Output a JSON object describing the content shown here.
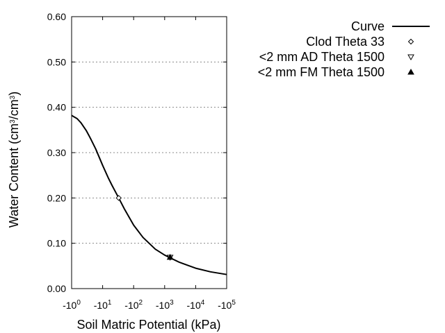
{
  "chart_data": {
    "type": "line",
    "x_scale": "log",
    "x_axis_direction": "negative",
    "xlabel": "Soil Matric Potential (kPa)",
    "ylabel_main": "Water Content (cm",
    "ylabel_sup1": "3",
    "ylabel_mid": "/cm",
    "ylabel_sup2": "3",
    "ylabel_end": ")",
    "xlim": [
      -1,
      -100000
    ],
    "ylim": [
      0,
      0.6
    ],
    "grid": "horizontal-dotted",
    "x_tick_values": [
      -1,
      -10,
      -100,
      -1000,
      -10000,
      -100000
    ],
    "x_ticks": [
      {
        "base": "-10",
        "exp": "0"
      },
      {
        "base": "-10",
        "exp": "1"
      },
      {
        "base": "-10",
        "exp": "2"
      },
      {
        "base": "-10",
        "exp": "3"
      },
      {
        "base": "-10",
        "exp": "4"
      },
      {
        "base": "-10",
        "exp": "5"
      }
    ],
    "y_tick_values": [
      0,
      0.1,
      0.2,
      0.3,
      0.4,
      0.5,
      0.6
    ],
    "y_ticks": [
      "0.00",
      "0.10",
      "0.20",
      "0.30",
      "0.40",
      "0.50",
      "0.60"
    ],
    "legend_position": "top-right, outside plot",
    "series": [
      {
        "name": "Curve",
        "marker": "line",
        "x": [
          -1,
          -1.5,
          -2,
          -3,
          -4,
          -6,
          -10,
          -15,
          -20,
          -33,
          -50,
          -100,
          -200,
          -500,
          -1000,
          -1500,
          -3000,
          -10000,
          -30000,
          -100000
        ],
        "y": [
          0.382,
          0.375,
          0.366,
          0.348,
          0.332,
          0.308,
          0.272,
          0.245,
          0.228,
          0.2,
          0.176,
          0.14,
          0.113,
          0.087,
          0.074,
          0.068,
          0.058,
          0.045,
          0.037,
          0.031
        ]
      },
      {
        "name": "Clod Theta 33",
        "marker": "diamond-open",
        "x": [
          -33
        ],
        "y": [
          0.2
        ]
      },
      {
        "name": "<2 mm AD Theta 1500",
        "marker": "triangle-down-open",
        "x": [
          -1500
        ],
        "y": [
          0.069
        ]
      },
      {
        "name": "<2 mm FM Theta 1500",
        "marker": "triangle-up-filled",
        "x": [
          -1500
        ],
        "y": [
          0.069
        ]
      }
    ]
  }
}
